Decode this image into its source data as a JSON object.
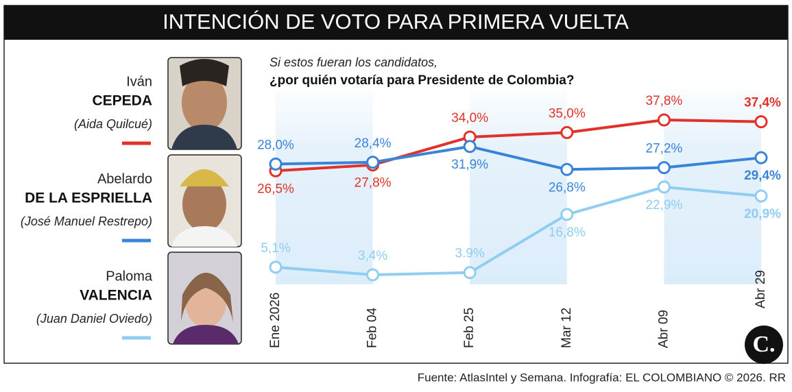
{
  "chart_data": {
    "type": "line",
    "title": "INTENCIÓN DE VOTO PARA PRIMERA VUELTA",
    "subtitle": "Si estos fueran los candidatos,",
    "question": "¿por quién votaría para Presidente de Colombia?",
    "source": "Fuente: AtlasIntel y Semana. Infografía: EL COLOMBIANO © 2026. RR",
    "logo": "C.",
    "categories": [
      "Ene 2026",
      "Feb 04",
      "Feb 25",
      "Mar 12",
      "Abr 09",
      "Abr 29"
    ],
    "series": [
      {
        "first_name": "Iván",
        "name": "CEPEDA",
        "running_mate": "(Aida Quilcué)",
        "color": "#e0322b",
        "values": [
          26.5,
          27.8,
          34.0,
          35.0,
          37.8,
          37.4
        ],
        "value_labels": [
          "26,5%",
          "27,8%",
          "34,0%",
          "35,0%",
          "37,8%",
          "37,4%"
        ]
      },
      {
        "first_name": "Abelardo",
        "name": "DE LA ESPRIELLA",
        "running_mate": "(José Manuel Restrepo)",
        "color": "#3a84d8",
        "values": [
          28.0,
          28.4,
          31.9,
          26.8,
          27.2,
          29.4
        ],
        "value_labels": [
          "28,0%",
          "28,4%",
          "31,9%",
          "26,8%",
          "27,2%",
          "29,4%"
        ]
      },
      {
        "first_name": "Paloma",
        "name": "VALENCIA",
        "running_mate": "(Juan Daniel Oviedo)",
        "color": "#8fcdf1",
        "values": [
          5.1,
          3.4,
          3.9,
          16.8,
          22.9,
          20.9
        ],
        "value_labels": [
          "5,1%",
          "3,4%",
          "3.9%",
          "16,8%",
          "22,9%",
          "20,9%"
        ]
      }
    ]
  }
}
